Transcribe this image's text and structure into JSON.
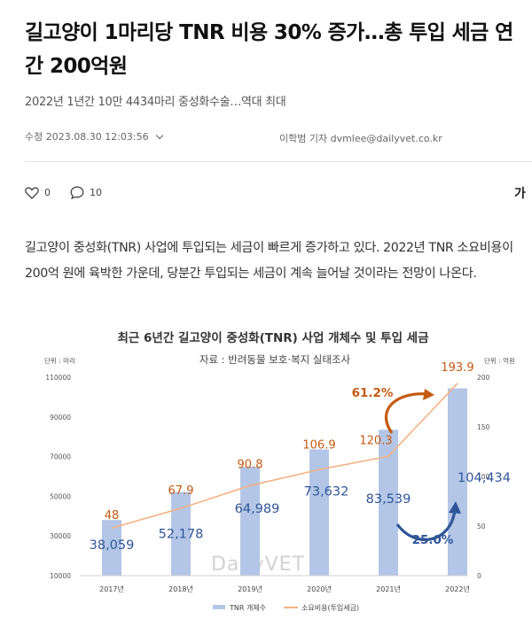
{
  "article": {
    "headline": "길고양이 1마리당 TNR 비용 30% 증가…총 투입 세금 연간 200억원",
    "subtitle": "2022년 1년간 10만 4434마리 중성화수술…역대 최대",
    "modified": "수정 2023.08.30 12:03:56",
    "byline": "이학범 기자 dvmlee@dailyvet.co.kr",
    "likes": "0",
    "comments": "10",
    "font_button": "가",
    "body": "길고양이 중성화(TNR) 사업에 투입되는 세금이 빠르게 증가하고 있다. 2022년 TNR 소요비용이 200억 원에 육박한 가운데, 당분간 투입되는 세금이 계속 늘어날 것이라는 전망이 나온다."
  },
  "icons": {
    "like": "heart-icon",
    "comment": "speech-bubble-icon",
    "dropdown": "chevron-down-icon"
  },
  "colors": {
    "bar": "#b4c6e7",
    "line": "#f4b183",
    "bar_label": "#2f5597",
    "line_label": "#c55a11",
    "arrow_orange": "#c55a11",
    "arrow_blue": "#2f5597"
  },
  "chart_data": {
    "type": "bar",
    "title": "최근 6년간 길고양이 중성화(TNR) 사업 개체수 및 투입 세금",
    "subtitle": "자료 : 반려동물 보호·복지 실태조사",
    "left_unit": "단위 : 마리",
    "right_unit": "단위 : 억원",
    "watermark": "DailyVET",
    "categories": [
      "2017년",
      "2018년",
      "2019년",
      "2020년",
      "2021년",
      "2022년"
    ],
    "left_ticks": [
      "10000",
      "30000",
      "50000",
      "70000",
      "90000",
      "110000"
    ],
    "right_ticks": [
      "0",
      "50",
      "100",
      "150",
      "200"
    ],
    "ylim_left": [
      10000,
      110000
    ],
    "ylim_right": [
      0,
      200
    ],
    "series": [
      {
        "name": "TNR 개체수",
        "type": "bar",
        "axis": "left",
        "values": [
          38059,
          52178,
          64989,
          73632,
          83539,
          104434
        ],
        "labels": [
          "38,059",
          "52,178",
          "64,989",
          "73,632",
          "83,539",
          "104,434"
        ]
      },
      {
        "name": "소요비용(투입세금)",
        "type": "line",
        "axis": "right",
        "values": [
          48,
          67.9,
          90.8,
          106.9,
          120.3,
          193.9
        ],
        "labels": [
          "48",
          "67.9",
          "90.8",
          "106.9",
          "120.3",
          "193.9"
        ]
      }
    ],
    "annotations": [
      "61.2%",
      "25.0%"
    ],
    "legend_position": "bottom",
    "grid": false
  }
}
